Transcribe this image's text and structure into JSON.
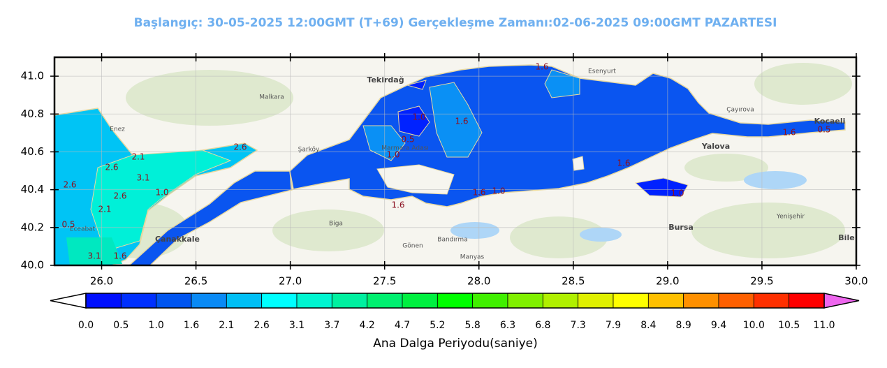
{
  "header": {
    "title": "Başlangıç: 30-05-2025 12:00GMT (T+69)  Gerçekleşme Zamanı:02-06-2025 09:00GMT PAZARTESI"
  },
  "map": {
    "xlim": [
      25.75,
      30
    ],
    "ylim": [
      40,
      41.1
    ],
    "xticks": [
      {
        "value": 26,
        "label": "26.0"
      },
      26.5,
      {
        "value": 27,
        "label": "27.0"
      },
      27.5,
      {
        "value": 28,
        "label": "28.0"
      },
      28.5,
      {
        "value": 29,
        "label": "29.0"
      },
      29.5,
      {
        "value": 30,
        "label": "30.0"
      }
    ],
    "yticks": [
      {
        "value": 40,
        "label": "40.0"
      },
      40.2,
      40.4,
      40.6,
      40.8,
      {
        "value": 41,
        "label": "41.0"
      }
    ],
    "grid": true
  },
  "places": [
    "Tekirdağ",
    "Malkara",
    "Şarköy",
    "Enez",
    "Çanakkale",
    "Eceabat",
    "Marmara Adası",
    "Bandırma",
    "Biga",
    "Gönen",
    "Manyas",
    "Yalova",
    "Bursa",
    "Kocaeli",
    "Esenyurt",
    "Çayırova",
    "Yenişehir",
    "Bile"
  ],
  "contour_labels": [
    "1.6",
    "1.0",
    "1.6",
    "0.5",
    "1.0",
    "2.6",
    "2.1",
    "2.6",
    "3.1",
    "1.0",
    "2.6",
    "2.6",
    "2.1",
    "0.5",
    "1.6",
    "1.6",
    "1.0",
    "1.6",
    "1.0",
    "1.6",
    "0.5",
    "3.1",
    "1.6"
  ],
  "colorbar": {
    "title": "Ana Dalga Periyodu(saniye)",
    "levels": [
      {
        "value": 0,
        "label": "0.0"
      },
      0.5,
      {
        "value": 1,
        "label": "1.0"
      },
      1.6,
      2.1,
      2.6,
      3.1,
      3.7,
      4.2,
      4.7,
      5.2,
      5.8,
      6.3,
      6.8,
      7.3,
      7.9,
      8.4,
      8.9,
      9.4,
      {
        "value": 10,
        "label": "10.0"
      },
      10.5,
      {
        "value": 11,
        "label": "11.0"
      }
    ],
    "colors": [
      "#0010ff",
      "#0030ff",
      "#0055f0",
      "#0a8af5",
      "#00bff5",
      "#00ffff",
      "#00f5d0",
      "#00f0a0",
      "#00f070",
      "#00f040",
      "#00ff00",
      "#40f000",
      "#80f000",
      "#b0f000",
      "#e0f000",
      "#ffff00",
      "#ffc000",
      "#ff9000",
      "#ff6000",
      "#ff3000",
      "#ff0000"
    ],
    "under_color": "#ffffff",
    "over_color": "#ee66ee"
  }
}
